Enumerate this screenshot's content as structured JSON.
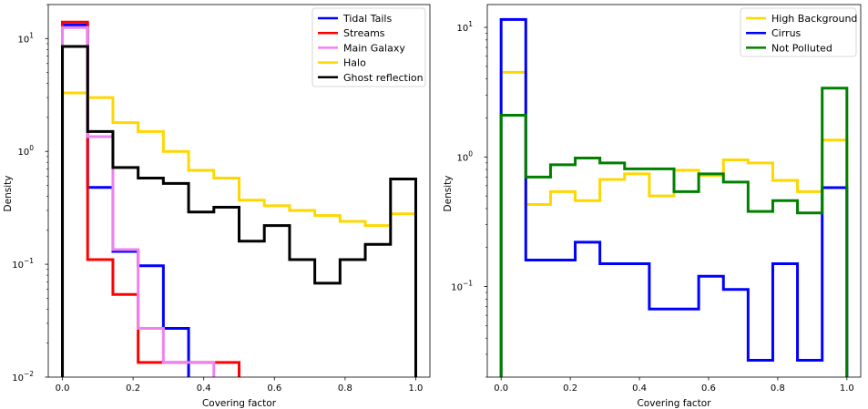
{
  "chart_data": [
    {
      "type": "histogram",
      "xlabel": "Covering factor",
      "ylabel": "Density",
      "yscale": "log",
      "xlim": [
        -0.04,
        1.04
      ],
      "ylim": [
        0.01,
        20
      ],
      "x_ticks": [
        "0.0",
        "0.2",
        "0.4",
        "0.6",
        "0.8",
        "1.0"
      ],
      "y_ticks": [
        {
          "base": "10",
          "exp": "1"
        },
        {
          "base": "10",
          "exp": "0"
        },
        {
          "base": "10",
          "exp": "−1"
        },
        {
          "base": "10",
          "exp": "−2"
        }
      ],
      "legend_position": "top-right",
      "bin_edges": [
        0.0,
        0.0714,
        0.1429,
        0.2143,
        0.2857,
        0.3571,
        0.4286,
        0.5,
        0.5714,
        0.6429,
        0.7143,
        0.7857,
        0.8571,
        0.9286,
        1.0
      ],
      "series": [
        {
          "name": "Tidal Tails",
          "color": "#0000ff",
          "values": [
            13.2,
            0.48,
            0.13,
            0.097,
            0.027,
            0,
            0,
            0,
            0,
            0,
            0,
            0,
            0,
            0
          ]
        },
        {
          "name": "Streams",
          "color": "#ff0000",
          "values": [
            14.0,
            0.11,
            0.054,
            0.0135,
            0.0135,
            0.0135,
            0.0135,
            0,
            0,
            0,
            0,
            0,
            0,
            0
          ]
        },
        {
          "name": "Main Galaxy",
          "color": "#ee82ee",
          "values": [
            12.5,
            1.35,
            0.135,
            0.027,
            0.0135,
            0.0135,
            0,
            0,
            0,
            0,
            0,
            0,
            0,
            0
          ]
        },
        {
          "name": "Halo",
          "color": "#ffd700",
          "values": [
            3.3,
            3.0,
            1.8,
            1.5,
            1.0,
            0.68,
            0.58,
            0.37,
            0.33,
            0.3,
            0.27,
            0.24,
            0.22,
            0.28
          ]
        },
        {
          "name": "Ghost reflection",
          "color": "#000000",
          "values": [
            8.5,
            1.5,
            0.72,
            0.58,
            0.52,
            0.29,
            0.32,
            0.16,
            0.22,
            0.11,
            0.068,
            0.11,
            0.15,
            0.57
          ]
        }
      ]
    },
    {
      "type": "histogram",
      "xlabel": "Covering factor",
      "ylabel": "Density",
      "yscale": "log",
      "xlim": [
        -0.04,
        1.04
      ],
      "ylim": [
        0.02,
        15
      ],
      "x_ticks": [
        "0.0",
        "0.2",
        "0.4",
        "0.6",
        "0.8",
        "1.0"
      ],
      "y_ticks": [
        {
          "base": "10",
          "exp": "1"
        },
        {
          "base": "10",
          "exp": "0"
        },
        {
          "base": "10",
          "exp": "−1"
        }
      ],
      "legend_position": "top-right",
      "bin_edges": [
        0.0,
        0.0714,
        0.1429,
        0.2143,
        0.2857,
        0.3571,
        0.4286,
        0.5,
        0.5714,
        0.6429,
        0.7143,
        0.7857,
        0.8571,
        0.9286,
        1.0
      ],
      "series": [
        {
          "name": "High Background",
          "color": "#ffd700",
          "values": [
            4.5,
            0.43,
            0.54,
            0.46,
            0.67,
            0.74,
            0.5,
            0.79,
            0.72,
            0.95,
            0.9,
            0.66,
            0.54,
            1.35
          ]
        },
        {
          "name": "Cirrus",
          "color": "#0000ff",
          "values": [
            11.5,
            0.16,
            0.16,
            0.22,
            0.15,
            0.15,
            0.067,
            0.067,
            0.12,
            0.095,
            0.027,
            0.15,
            0.027,
            0.58
          ]
        },
        {
          "name": "Not Polluted",
          "color": "#008000",
          "values": [
            2.1,
            0.7,
            0.87,
            0.98,
            0.9,
            0.81,
            0.81,
            0.54,
            0.74,
            0.64,
            0.38,
            0.46,
            0.37,
            3.4
          ]
        }
      ]
    }
  ]
}
